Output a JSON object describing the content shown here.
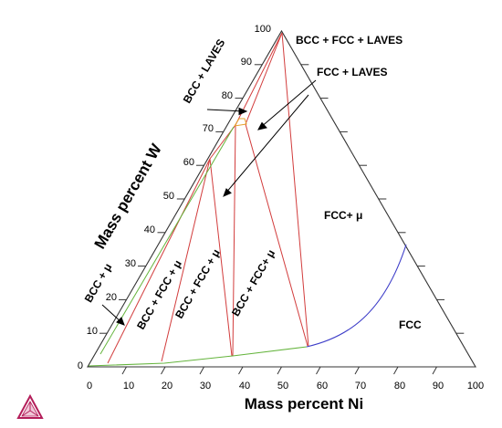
{
  "axes": {
    "bottom_title": "Mass percent Ni",
    "left_title": "Mass percent W",
    "bottom_ticks": [
      "0",
      "10",
      "20",
      "30",
      "40",
      "50",
      "60",
      "70",
      "80",
      "90",
      "100"
    ],
    "left_ticks": [
      "0",
      "10",
      "20",
      "30",
      "40",
      "50",
      "60",
      "70",
      "80",
      "90",
      "100"
    ]
  },
  "regions": {
    "bcc_fcc_laves": "BCC + FCC + LAVES",
    "fcc_laves": "FCC + LAVES",
    "bcc_laves": "BCC + LAVES",
    "fcc_mu": "FCC+ μ",
    "fcc": "FCC",
    "bcc_mu": "BCC + μ",
    "bcc_fcc_mu_1": "BCC + FCC + μ",
    "bcc_fcc_mu_2": "BCC + FCC + μ",
    "bcc_fcc_mu_3": "BCC + FCC+ μ"
  },
  "colors": {
    "frame": "#333333",
    "tie_lines": "#d23c3c",
    "fcc_boundary": "#3c3cc8",
    "bcc_boundary": "#64b43c",
    "laves_boundary": "#e6a028",
    "logo": "#b41e5a"
  }
}
